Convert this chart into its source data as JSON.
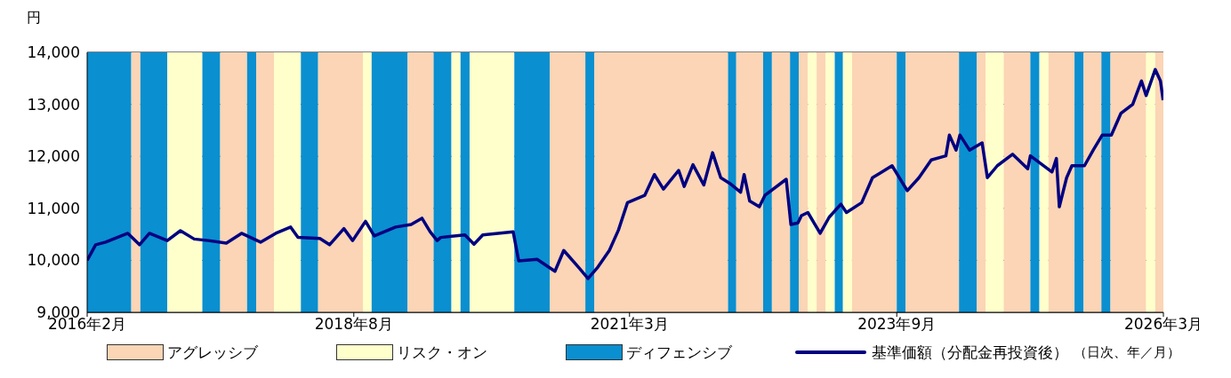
{
  "chart_data": {
    "type": "line",
    "ylabel": "円",
    "annotations": [
      "（日次、年／月）"
    ],
    "xlim": [
      "2016-02",
      "2026-03"
    ],
    "xticks": [
      {
        "value": "2016-02",
        "label": "2016年2月"
      },
      {
        "value": "2018-08",
        "label": "2018年8月"
      },
      {
        "value": "2021-03",
        "label": "2021年3月"
      },
      {
        "value": "2023-09",
        "label": "2023年9月"
      },
      {
        "value": "2026-03",
        "label": "2026年3月"
      }
    ],
    "ylim": [
      9000,
      14000
    ],
    "yticks": [
      {
        "value": 9000,
        "label": "9,000"
      },
      {
        "value": 10000,
        "label": "10,000"
      },
      {
        "value": 11000,
        "label": "11,000"
      },
      {
        "value": 12000,
        "label": "12,000"
      },
      {
        "value": 13000,
        "label": "13,000"
      },
      {
        "value": 14000,
        "label": "14,000"
      }
    ],
    "grid": "y",
    "legend": "bottom",
    "marker": "none",
    "line_style": "solid",
    "x": [
      "2016-02-01",
      "2016-03-01",
      "2016-04-04",
      "2016-06-19",
      "2016-07-29",
      "2016-09-01",
      "2016-11-01",
      "2016-12-16",
      "2017-02-01",
      "2017-03-22",
      "2017-05-22",
      "2017-07-13",
      "2017-09-16",
      "2017-11-07",
      "2017-12-28",
      "2018-01-22",
      "2018-04-07",
      "2018-05-10",
      "2018-06-28",
      "2018-07-28",
      "2018-09-10",
      "2018-10-10",
      "2018-12-22",
      "2019-02-13",
      "2019-03-22",
      "2019-04-19",
      "2019-05-13",
      "2019-05-25",
      "2019-08-16",
      "2019-09-16",
      "2019-10-16",
      "2020-01-28",
      "2020-02-16",
      "2020-04-19",
      "2020-06-19",
      "2020-07-19",
      "2020-09-10",
      "2020-10-10",
      "2020-11-10",
      "2020-12-22",
      "2021-01-22",
      "2021-02-22",
      "2021-04-22",
      "2021-05-25",
      "2021-06-25",
      "2021-08-16",
      "2021-09-04",
      "2021-10-04",
      "2021-11-10",
      "2021-12-10",
      "2022-01-07",
      "2022-02-07",
      "2022-03-16",
      "2022-03-28",
      "2022-04-16",
      "2022-05-19",
      "2022-06-07",
      "2022-08-19",
      "2022-09-04",
      "2022-09-28",
      "2022-10-10",
      "2022-11-01",
      "2022-12-13",
      "2023-01-13",
      "2023-02-22",
      "2023-03-13",
      "2023-05-04",
      "2023-06-10",
      "2023-07-04",
      "2023-08-16",
      "2023-10-07",
      "2023-11-16",
      "2023-12-28",
      "2024-02-16",
      "2024-02-28",
      "2024-03-22",
      "2024-04-04",
      "2024-05-07",
      "2024-06-19",
      "2024-07-07",
      "2024-08-10",
      "2024-10-01",
      "2024-11-22",
      "2024-12-01",
      "2025-02-13",
      "2025-02-28",
      "2025-03-10",
      "2025-04-04",
      "2025-04-22",
      "2025-06-04",
      "2025-07-04",
      "2025-08-04",
      "2025-09-04",
      "2025-10-07",
      "2025-11-16",
      "2025-12-16",
      "2026-01-01",
      "2026-02-01",
      "2026-02-19",
      "2026-02-28"
    ],
    "series": [
      {
        "name": "基準価額（分配金再投資後）",
        "color": "#000080",
        "values": [
          10000,
          10300,
          10350,
          10520,
          10300,
          10520,
          10380,
          10570,
          10410,
          10380,
          10330,
          10520,
          10350,
          10520,
          10640,
          10440,
          10420,
          10300,
          10610,
          10380,
          10750,
          10470,
          10640,
          10690,
          10810,
          10550,
          10380,
          10440,
          10490,
          10310,
          10490,
          10550,
          9990,
          10020,
          9790,
          10190,
          9850,
          9650,
          9850,
          10190,
          10580,
          11110,
          11250,
          11650,
          11370,
          11730,
          11420,
          11840,
          11450,
          12070,
          11590,
          11480,
          11310,
          11650,
          11140,
          11030,
          11250,
          11560,
          10690,
          10720,
          10860,
          10920,
          10520,
          10830,
          11080,
          10920,
          11110,
          11590,
          11670,
          11820,
          11340,
          11590,
          11930,
          12010,
          12410,
          12120,
          12410,
          12120,
          12260,
          11590,
          11820,
          12040,
          11760,
          12010,
          11700,
          11960,
          11030,
          11590,
          11820,
          11820,
          12120,
          12410,
          12410,
          12830,
          13000,
          13450,
          13170,
          13670,
          13450,
          13080
        ]
      }
    ],
    "bands": [
      {
        "axis": "x",
        "from": "2016-02",
        "to": "2016-07",
        "color": "#0a8fd0"
      },
      {
        "axis": "x",
        "from": "2016-07",
        "to": "2016-08",
        "label": "アグレッシブ",
        "color": "#fbd5b5"
      },
      {
        "axis": "x",
        "from": "2016-08",
        "to": "2016-11",
        "color": "#0a8fd0"
      },
      {
        "axis": "x",
        "from": "2016-11",
        "to": "2017-03",
        "label": "リスク・オン",
        "color": "#ffffcc"
      },
      {
        "axis": "x",
        "from": "2017-03",
        "to": "2017-05",
        "label": "ディフェンシブ",
        "color": "#0a8fd0"
      },
      {
        "axis": "x",
        "from": "2017-05",
        "to": "2017-08",
        "color": "#fbd5b5"
      },
      {
        "axis": "x",
        "from": "2017-08",
        "to": "2017-09",
        "color": "#0a8fd0"
      },
      {
        "axis": "x",
        "from": "2017-09",
        "to": "2017-11",
        "color": "#fbd5b5"
      },
      {
        "axis": "x",
        "from": "2017-11",
        "to": "2018-02",
        "color": "#ffffcc"
      },
      {
        "axis": "x",
        "from": "2018-02",
        "to": "2018-04",
        "color": "#0a8fd0"
      },
      {
        "axis": "x",
        "from": "2018-04",
        "to": "2018-09",
        "color": "#fbd5b5"
      },
      {
        "axis": "x",
        "from": "2018-09",
        "to": "2018-10",
        "color": "#ffffcc"
      },
      {
        "axis": "x",
        "from": "2018-10",
        "to": "2019-02",
        "color": "#0a8fd0"
      },
      {
        "axis": "x",
        "from": "2019-02",
        "to": "2019-05",
        "color": "#fbd5b5"
      },
      {
        "axis": "x",
        "from": "2019-05",
        "to": "2019-07",
        "color": "#0a8fd0"
      },
      {
        "axis": "x",
        "from": "2019-07",
        "to": "2019-08",
        "color": "#ffffcc"
      },
      {
        "axis": "x",
        "from": "2019-08",
        "to": "2019-09",
        "color": "#0a8fd0"
      },
      {
        "axis": "x",
        "from": "2019-09",
        "to": "2020-02",
        "color": "#ffffcc"
      },
      {
        "axis": "x",
        "from": "2020-02",
        "to": "2020-06",
        "color": "#0a8fd0"
      },
      {
        "axis": "x",
        "from": "2020-06",
        "to": "2020-10",
        "color": "#fbd5b5"
      },
      {
        "axis": "x",
        "from": "2020-10",
        "to": "2020-11",
        "color": "#0a8fd0"
      },
      {
        "axis": "x",
        "from": "2020-11",
        "to": "2022-02",
        "color": "#fbd5b5"
      },
      {
        "axis": "x",
        "from": "2022-02",
        "to": "2022-03",
        "color": "#0a8fd0"
      },
      {
        "axis": "x",
        "from": "2022-03",
        "to": "2022-06",
        "color": "#fbd5b5"
      },
      {
        "axis": "x",
        "from": "2022-06",
        "to": "2022-07",
        "color": "#0a8fd0"
      },
      {
        "axis": "x",
        "from": "2022-07",
        "to": "2022-09",
        "color": "#fbd5b5"
      },
      {
        "axis": "x",
        "from": "2022-09",
        "to": "2022-10",
        "color": "#0a8fd0"
      },
      {
        "axis": "x",
        "from": "2022-10",
        "to": "2022-11",
        "color": "#fbd5b5"
      },
      {
        "axis": "x",
        "from": "2022-11",
        "to": "2022-12",
        "color": "#ffffcc"
      },
      {
        "axis": "x",
        "from": "2022-12",
        "to": "2023-01",
        "color": "#fbd5b5"
      },
      {
        "axis": "x",
        "from": "2023-01",
        "to": "2023-02",
        "color": "#ffffcc"
      },
      {
        "axis": "x",
        "from": "2023-02",
        "to": "2023-03",
        "color": "#0a8fd0"
      },
      {
        "axis": "x",
        "from": "2023-03",
        "to": "2023-04",
        "color": "#ffffcc"
      },
      {
        "axis": "x",
        "from": "2023-04",
        "to": "2023-09",
        "color": "#fbd5b5"
      },
      {
        "axis": "x",
        "from": "2023-09",
        "to": "2023-10",
        "color": "#0a8fd0"
      },
      {
        "axis": "x",
        "from": "2023-10",
        "to": "2024-04",
        "color": "#fbd5b5"
      },
      {
        "axis": "x",
        "from": "2024-04",
        "to": "2024-06",
        "color": "#0a8fd0"
      },
      {
        "axis": "x",
        "from": "2024-06",
        "to": "2024-07",
        "color": "#fbd5b5"
      },
      {
        "axis": "x",
        "from": "2024-07",
        "to": "2024-09",
        "color": "#ffffcc"
      },
      {
        "axis": "x",
        "from": "2024-09",
        "to": "2024-12",
        "color": "#fbd5b5"
      },
      {
        "axis": "x",
        "from": "2024-12",
        "to": "2025-01",
        "color": "#0a8fd0"
      },
      {
        "axis": "x",
        "from": "2025-01",
        "to": "2025-02",
        "color": "#ffffcc"
      },
      {
        "axis": "x",
        "from": "2025-02",
        "to": "2025-05",
        "color": "#fbd5b5"
      },
      {
        "axis": "x",
        "from": "2025-05",
        "to": "2025-06",
        "color": "#0a8fd0"
      },
      {
        "axis": "x",
        "from": "2025-06",
        "to": "2025-08",
        "color": "#fbd5b5"
      },
      {
        "axis": "x",
        "from": "2025-08",
        "to": "2025-09",
        "color": "#0a8fd0"
      },
      {
        "axis": "x",
        "from": "2025-09",
        "to": "2026-01",
        "color": "#fbd5b5"
      },
      {
        "axis": "x",
        "from": "2026-01",
        "to": "2026-02",
        "color": "#ffffcc"
      },
      {
        "axis": "x",
        "from": "2026-02",
        "to": "2026-03",
        "color": "#fbd5b5"
      }
    ]
  }
}
